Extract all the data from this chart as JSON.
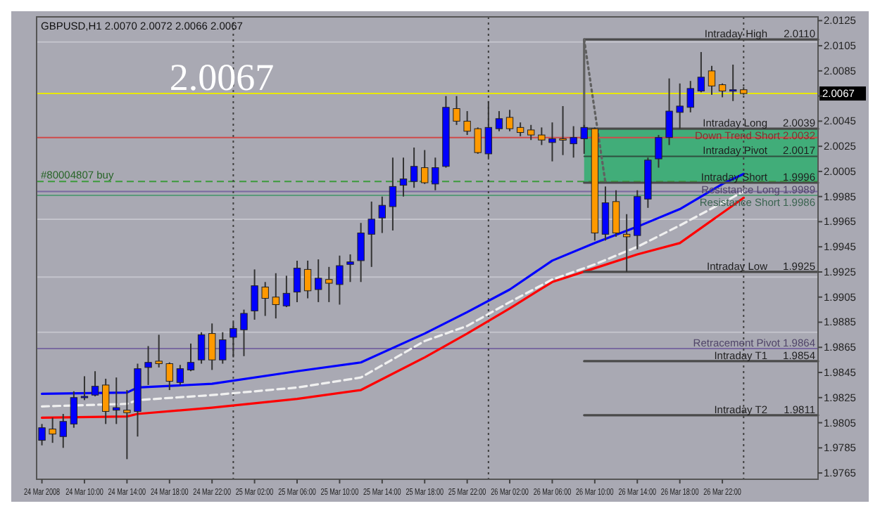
{
  "chart_data": {
    "type": "candlestick",
    "title": "GBPUSD,H1  2.0070 2.0072 2.0066 2.0067",
    "x": [
      "2008-03-24T06:00",
      "2008-03-24T07:00",
      "2008-03-24T08:00",
      "2008-03-24T09:00",
      "2008-03-24T10:00",
      "2008-03-24T11:00",
      "2008-03-24T12:00",
      "2008-03-24T13:00",
      "2008-03-24T14:00",
      "2008-03-24T15:00",
      "2008-03-24T16:00",
      "2008-03-24T17:00",
      "2008-03-24T18:00",
      "2008-03-24T19:00",
      "2008-03-24T20:00",
      "2008-03-24T21:00",
      "2008-03-24T22:00",
      "2008-03-24T23:00",
      "2008-03-25T00:00",
      "2008-03-25T01:00",
      "2008-03-25T02:00",
      "2008-03-25T03:00",
      "2008-03-25T04:00",
      "2008-03-25T05:00",
      "2008-03-25T06:00",
      "2008-03-25T07:00",
      "2008-03-25T08:00",
      "2008-03-25T09:00",
      "2008-03-25T10:00",
      "2008-03-25T11:00",
      "2008-03-25T12:00",
      "2008-03-25T13:00",
      "2008-03-25T14:00",
      "2008-03-25T15:00",
      "2008-03-25T16:00",
      "2008-03-25T17:00",
      "2008-03-25T18:00",
      "2008-03-25T19:00",
      "2008-03-25T20:00",
      "2008-03-25T21:00",
      "2008-03-25T22:00",
      "2008-03-25T23:00",
      "2008-03-26T00:00",
      "2008-03-26T01:00",
      "2008-03-26T02:00",
      "2008-03-26T03:00",
      "2008-03-26T04:00",
      "2008-03-26T05:00",
      "2008-03-26T06:00",
      "2008-03-26T07:00",
      "2008-03-26T08:00",
      "2008-03-26T09:00",
      "2008-03-26T10:00",
      "2008-03-26T11:00",
      "2008-03-26T12:00",
      "2008-03-26T13:00",
      "2008-03-26T14:00",
      "2008-03-26T15:00",
      "2008-03-26T16:00",
      "2008-03-26T17:00",
      "2008-03-26T18:00",
      "2008-03-26T19:00",
      "2008-03-26T20:00",
      "2008-03-26T21:00",
      "2008-03-26T22:00",
      "2008-03-26T23:00",
      "2008-03-27T00:00"
    ],
    "ohlc": [
      [
        1.9791,
        1.9804,
        1.9787,
        1.9801
      ],
      [
        1.98,
        1.9809,
        1.9789,
        1.9796
      ],
      [
        1.9794,
        1.9812,
        1.9785,
        1.9806
      ],
      [
        1.9804,
        1.983,
        1.9801,
        1.9825
      ],
      [
        1.9825,
        1.9842,
        1.9823,
        1.9826
      ],
      [
        1.9827,
        1.9846,
        1.9826,
        1.9834
      ],
      [
        1.9835,
        1.984,
        1.9804,
        1.9814
      ],
      [
        1.9815,
        1.9841,
        1.9804,
        1.9817
      ],
      [
        1.9815,
        1.9831,
        1.9776,
        1.9813
      ],
      [
        1.9814,
        1.9852,
        1.9794,
        1.9848
      ],
      [
        1.9849,
        1.9866,
        1.9835,
        1.9853
      ],
      [
        1.9854,
        1.9875,
        1.9849,
        1.9852
      ],
      [
        1.9852,
        1.9853,
        1.9831,
        1.9838
      ],
      [
        1.9837,
        1.9851,
        1.9835,
        1.9848
      ],
      [
        1.9847,
        1.9868,
        1.9846,
        1.9853
      ],
      [
        1.9855,
        1.9877,
        1.9852,
        1.9875
      ],
      [
        1.9876,
        1.9884,
        1.9847,
        1.9855
      ],
      [
        1.9855,
        1.9877,
        1.9852,
        1.9871
      ],
      [
        1.9873,
        1.9885,
        1.9857,
        1.988
      ],
      [
        1.9879,
        1.9895,
        1.9858,
        1.9892
      ],
      [
        1.9894,
        1.9927,
        1.9887,
        1.9914
      ],
      [
        1.9913,
        1.9917,
        1.989,
        1.9904
      ],
      [
        1.9905,
        1.9924,
        1.9888,
        1.9899
      ],
      [
        1.9898,
        1.9922,
        1.9897,
        1.9908
      ],
      [
        1.9909,
        1.9934,
        1.9901,
        1.9928
      ],
      [
        1.9927,
        1.9934,
        1.9904,
        1.991
      ],
      [
        1.9911,
        1.9935,
        1.9901,
        1.992
      ],
      [
        1.9919,
        1.9929,
        1.9901,
        1.9916
      ],
      [
        1.9915,
        1.9938,
        1.9899,
        1.993
      ],
      [
        1.9931,
        1.9939,
        1.9917,
        1.9933
      ],
      [
        1.9934,
        1.9964,
        1.9917,
        1.9956
      ],
      [
        1.9955,
        1.9981,
        1.9929,
        1.9967
      ],
      [
        1.9968,
        1.9985,
        1.9956,
        1.9978
      ],
      [
        1.9977,
        2.0016,
        1.9958,
        1.9993
      ],
      [
        1.9994,
        2.0016,
        1.9985,
        1.9999
      ],
      [
        1.9997,
        2.0024,
        1.9992,
        2.0009
      ],
      [
        2.0008,
        2.0022,
        1.9995,
        1.9996
      ],
      [
        1.9995,
        2.0016,
        1.999,
        2.0008
      ],
      [
        2.0009,
        2.0065,
        2.0008,
        2.0056
      ],
      [
        2.0055,
        2.0065,
        2.0042,
        2.0045
      ],
      [
        2.0045,
        2.0053,
        2.0034,
        2.0037
      ],
      [
        2.0039,
        2.004,
        2.0019,
        2.002
      ],
      [
        2.0019,
        2.0061,
        2.0016,
        2.004
      ],
      [
        2.0039,
        2.0053,
        2.0037,
        2.0047
      ],
      [
        2.0048,
        2.0054,
        2.0037,
        2.0039
      ],
      [
        2.004,
        2.0044,
        2.0033,
        2.0036
      ],
      [
        2.0038,
        2.0042,
        2.003,
        2.0034
      ],
      [
        2.0034,
        2.004,
        2.0026,
        2.003
      ],
      [
        2.0028,
        2.0044,
        2.0013,
        2.0031
      ],
      [
        2.0031,
        2.0057,
        2.0018,
        2.003
      ],
      [
        2.0027,
        2.0041,
        2.0016,
        2.0032
      ],
      [
        2.0031,
        2.0042,
        2.0019,
        2.004
      ],
      [
        2.0039,
        2.004,
        1.995,
        1.9956
      ],
      [
        1.9955,
        1.9993,
        1.995,
        1.998
      ],
      [
        1.9981,
        1.999,
        1.9953,
        1.9956
      ],
      [
        1.9955,
        1.9971,
        1.9925,
        1.9953
      ],
      [
        1.9954,
        1.999,
        1.9943,
        1.9985
      ],
      [
        1.9983,
        2.0016,
        1.9976,
        2.0014
      ],
      [
        2.0015,
        2.0034,
        2.0008,
        2.0032
      ],
      [
        2.0032,
        2.0079,
        2.0026,
        2.0053
      ],
      [
        2.0052,
        2.0075,
        2.0039,
        2.0057
      ],
      [
        2.0056,
        2.0077,
        2.0052,
        2.0071
      ],
      [
        2.0069,
        2.01,
        2.0068,
        2.008
      ],
      [
        2.0085,
        2.0089,
        2.0066,
        2.0073
      ],
      [
        2.0074,
        2.0075,
        2.0064,
        2.0069
      ],
      [
        2.0069,
        2.009,
        2.0061,
        2.007
      ],
      [
        2.007,
        2.0072,
        2.0066,
        2.0067
      ]
    ],
    "colors": [
      "#0000ff",
      "#ff9900",
      "#0000ff",
      "#0000ff",
      "#0000ff",
      "#0000ff",
      "#ff9900",
      "#0000ff",
      "#ff9900",
      "#0000ff",
      "#0000ff",
      "#ff9900",
      "#ff9900",
      "#0000ff",
      "#0000ff",
      "#0000ff",
      "#ff9900",
      "#0000ff",
      "#0000ff",
      "#0000ff",
      "#0000ff",
      "#ff9900",
      "#ff9900",
      "#0000ff",
      "#0000ff",
      "#ff9900",
      "#0000ff",
      "#ff9900",
      "#0000ff",
      "#0000ff",
      "#0000ff",
      "#0000ff",
      "#0000ff",
      "#0000ff",
      "#0000ff",
      "#0000ff",
      "#ff9900",
      "#0000ff",
      "#0000ff",
      "#ff9900",
      "#ff9900",
      "#ff9900",
      "#0000ff",
      "#0000ff",
      "#ff9900",
      "#ff9900",
      "#ff9900",
      "#ff9900",
      "#0000ff",
      "#ff9900",
      "#0000ff",
      "#0000ff",
      "#ff9900",
      "#0000ff",
      "#ff9900",
      "#ff9900",
      "#0000ff",
      "#0000ff",
      "#0000ff",
      "#0000ff",
      "#0000ff",
      "#0000ff",
      "#0000ff",
      "#ff9900",
      "#ff9900",
      "#0000ff",
      "#ff9900"
    ],
    "series": [
      {
        "type": "line",
        "color": "#0000ff",
        "x": [
          "2008-03-24T06:00",
          "2008-03-24T14:00",
          "2008-03-24T15:00",
          "2008-03-24T22:00",
          "2008-03-25T06:00",
          "2008-03-25T12:00",
          "2008-03-25T18:00",
          "2008-03-25T22:00",
          "2008-03-26T02:00",
          "2008-03-26T06:00",
          "2008-03-26T10:00",
          "2008-03-26T14:00",
          "2008-03-26T18:00",
          "2008-03-26T22:00",
          "2008-03-27T00:00"
        ],
        "values": [
          1.9828,
          1.9829,
          1.9833,
          1.9836,
          1.9846,
          1.9853,
          1.9876,
          1.9893,
          1.9911,
          1.9934,
          1.9948,
          1.9961,
          1.9975,
          1.9995,
          2.0003
        ]
      },
      {
        "type": "line",
        "color": "#f0f0f0",
        "line_style": "dashed",
        "x": [
          "2008-03-24T06:00",
          "2008-03-24T14:00",
          "2008-03-24T15:00",
          "2008-03-24T22:00",
          "2008-03-25T06:00",
          "2008-03-25T12:00",
          "2008-03-25T18:00",
          "2008-03-25T22:00",
          "2008-03-26T02:00",
          "2008-03-26T06:00",
          "2008-03-26T10:00",
          "2008-03-26T14:00",
          "2008-03-26T18:00",
          "2008-03-26T22:00",
          "2008-03-27T00:00"
        ],
        "values": [
          1.9818,
          1.982,
          1.9823,
          1.9827,
          1.9833,
          1.9841,
          1.987,
          1.9882,
          1.9901,
          1.9919,
          1.9931,
          1.9945,
          1.9962,
          1.998,
          1.9989
        ]
      },
      {
        "type": "line",
        "color": "#ff0000",
        "x": [
          "2008-03-24T06:00",
          "2008-03-24T14:00",
          "2008-03-24T15:00",
          "2008-03-24T22:00",
          "2008-03-25T06:00",
          "2008-03-25T12:00",
          "2008-03-25T18:00",
          "2008-03-25T22:00",
          "2008-03-26T02:00",
          "2008-03-26T06:00",
          "2008-03-26T10:00",
          "2008-03-26T14:00",
          "2008-03-26T18:00",
          "2008-03-26T22:00",
          "2008-03-27T00:00"
        ],
        "values": [
          1.9809,
          1.981,
          1.9812,
          1.9817,
          1.9824,
          1.9831,
          1.9857,
          1.9876,
          1.9896,
          1.9917,
          1.9928,
          1.9939,
          1.9948,
          1.9972,
          1.9984
        ]
      },
      {
        "type": "line",
        "name": "Intraday High",
        "color": "#4a4a4a",
        "x": [
          "2008-03-26T09:00",
          "2008-03-27T07:00"
        ],
        "values": [
          2.011,
          2.011
        ],
        "value_labels": [
          null,
          "2.0110"
        ]
      },
      {
        "type": "line",
        "name": "Intraday Long",
        "color": "#4a4a4a",
        "x": [
          "2008-03-26T09:00",
          "2008-03-27T07:00"
        ],
        "values": [
          2.0039,
          2.0039
        ],
        "value_labels": [
          null,
          "2.0039"
        ]
      },
      {
        "type": "line",
        "name": "Intraday Pivot",
        "color": "#2f4f3f",
        "x": [
          "2008-03-26T09:00",
          "2008-03-27T07:00"
        ],
        "values": [
          2.0017,
          2.0017
        ],
        "lower": [
          1.9996,
          1.9996
        ],
        "upper": [
          2.0039,
          2.0039
        ],
        "value_labels": [
          null,
          "2.0017"
        ]
      },
      {
        "type": "line",
        "name": "Intraday Short",
        "color": "#4a4a4a",
        "x": [
          "2008-03-26T09:00",
          "2008-03-27T07:00"
        ],
        "values": [
          1.9996,
          1.9996
        ],
        "value_labels": [
          null,
          "1.9996"
        ]
      },
      {
        "type": "line",
        "name": "Intraday Low",
        "color": "#4a4a4a",
        "x": [
          "2008-03-26T09:00",
          "2008-03-27T07:00"
        ],
        "values": [
          1.9925,
          1.9925
        ],
        "value_labels": [
          null,
          "1.9925"
        ]
      },
      {
        "type": "line",
        "name": "Intraday T1",
        "color": "#4a4a4a",
        "x": [
          "2008-03-26T09:00",
          "2008-03-27T07:00"
        ],
        "values": [
          1.9854,
          1.9854
        ],
        "value_labels": [
          null,
          "1.9854"
        ]
      },
      {
        "type": "line",
        "name": "Intraday T2",
        "color": "#4a4a4a",
        "x": [
          "2008-03-26T09:00",
          "2008-03-27T07:00"
        ],
        "values": [
          1.9811,
          1.9811
        ],
        "value_labels": [
          null,
          "1.9811"
        ]
      },
      {
        "type": "line",
        "color": "#606060",
        "x": [
          "2008-03-26T09:00",
          "2008-03-26T09:00"
        ],
        "values": [
          2.011,
          2.0039
        ]
      },
      {
        "type": "line",
        "color": "#606060",
        "line_style": "dotted",
        "x": [
          "2008-03-26T09:00",
          "2008-03-26T11:00"
        ],
        "values": [
          2.011,
          1.9996
        ]
      }
    ],
    "ref_lines": [
      {
        "axis": "y",
        "value": 2.0108,
        "color": "#c4c4cc"
      },
      {
        "axis": "y",
        "value": 1.9967,
        "color": "#c4c4cc"
      },
      {
        "axis": "y",
        "value": 1.9921,
        "color": "#c4c4cc"
      },
      {
        "axis": "y",
        "value": 1.9877,
        "color": "#c4c4cc"
      },
      {
        "axis": "y",
        "value": 2.0067,
        "color": "#e8e800"
      },
      {
        "axis": "y",
        "value": 2.0032,
        "color": "#d04a4a",
        "label": "Down Trend Short 2.0032"
      },
      {
        "axis": "y",
        "value": 1.9997,
        "color": "#3c9a3c",
        "line_style": "dashed",
        "label": "#80004807 buy"
      },
      {
        "axis": "y",
        "value": 1.9989,
        "color": "#7a6aa0",
        "label": "Resistance Long 1.9989"
      },
      {
        "axis": "y",
        "value": 1.9986,
        "color": "#5a9a7a",
        "label": "Resistance Short 1.9986"
      },
      {
        "axis": "y",
        "value": 1.9864,
        "color": "#7a6aa0",
        "label": "Retracement Pivot 1.9864"
      },
      {
        "axis": "x",
        "value": "2008-03-25T00:00",
        "color": "#404040",
        "line_style": "dotted"
      },
      {
        "axis": "x",
        "value": "2008-03-26T00:00",
        "color": "#404040",
        "line_style": "dotted"
      },
      {
        "axis": "x",
        "value": "2008-03-27T00:00",
        "color": "#404040",
        "line_style": "dotted"
      }
    ],
    "annotations": [
      "2.0067",
      {
        "text": "2.0067",
        "y": 2.0067
      }
    ],
    "xlim": [
      "2008-03-24T05:30",
      "2008-03-27T07:00"
    ],
    "xticks": [
      {
        "value": "2008-03-24T06:00",
        "label": "24 Mar 2008"
      },
      {
        "value": "2008-03-24T10:00",
        "label": "24 Mar 10:00"
      },
      {
        "value": "2008-03-24T14:00",
        "label": "24 Mar 14:00"
      },
      {
        "value": "2008-03-24T18:00",
        "label": "24 Mar 18:00"
      },
      {
        "value": "2008-03-24T22:00",
        "label": "24 Mar 22:00"
      },
      {
        "value": "2008-03-25T02:00",
        "label": "25 Mar 02:00"
      },
      {
        "value": "2008-03-25T06:00",
        "label": "25 Mar 06:00"
      },
      {
        "value": "2008-03-25T10:00",
        "label": "25 Mar 10:00"
      },
      {
        "value": "2008-03-25T14:00",
        "label": "25 Mar 14:00"
      },
      {
        "value": "2008-03-25T18:00",
        "label": "25 Mar 18:00"
      },
      {
        "value": "2008-03-25T22:00",
        "label": "25 Mar 22:00"
      },
      {
        "value": "2008-03-26T02:00",
        "label": "26 Mar 02:00"
      },
      {
        "value": "2008-03-26T06:00",
        "label": "26 Mar 06:00"
      },
      {
        "value": "2008-03-26T10:00",
        "label": "26 Mar 10:00"
      },
      {
        "value": "2008-03-26T14:00",
        "label": "26 Mar 14:00"
      },
      {
        "value": "2008-03-26T18:00",
        "label": "26 Mar 18:00"
      },
      {
        "value": "2008-03-26T22:00",
        "label": "26 Mar 22:00"
      }
    ],
    "ylim": [
      1.976,
      2.0128
    ],
    "yticks": [
      2.0125,
      2.0105,
      2.0085,
      {
        "value": 2.0065,
        "label": null
      },
      2.0045,
      2.0025,
      2.0005,
      1.9985,
      1.9965,
      1.9945,
      1.9925,
      1.9905,
      1.9885,
      1.9865,
      1.9845,
      1.9825,
      1.9805,
      1.9785,
      1.9765
    ]
  }
}
